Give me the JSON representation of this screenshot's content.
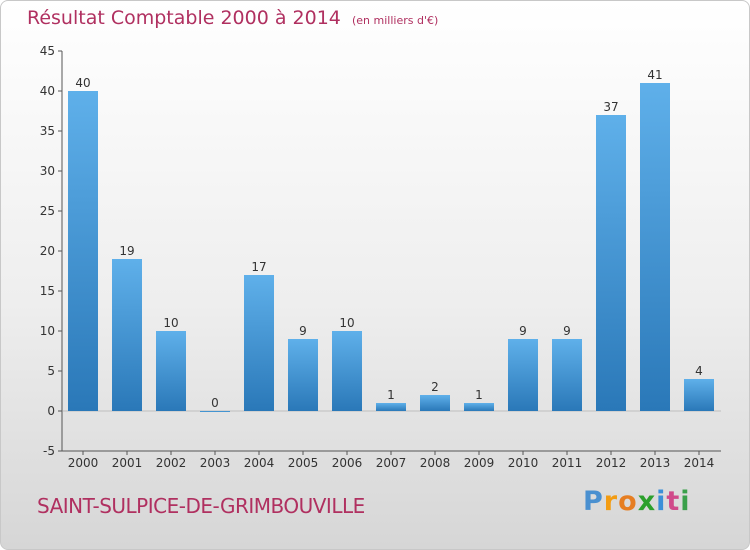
{
  "title": "Résultat Comptable 2000 à 2014",
  "subtitle": "(en milliers d'€)",
  "commune": "SAINT-SULPICE-DE-GRIMBOUVILLE",
  "logo": {
    "p": "P",
    "r": "r",
    "o": "o",
    "x": "x",
    "i1": "i",
    "t": "t",
    "i2": "i"
  },
  "colors": {
    "bar_light": "#5fb0ea",
    "bar_dark": "#2a78b8",
    "title": "#b03060"
  },
  "chart_data": {
    "type": "bar",
    "title": "Résultat Comptable 2000 à 2014",
    "ylabel": "(en milliers d'€)",
    "xlabel": "",
    "categories": [
      "2000",
      "2001",
      "2002",
      "2003",
      "2004",
      "2005",
      "2006",
      "2007",
      "2008",
      "2009",
      "2010",
      "2011",
      "2012",
      "2013",
      "2014"
    ],
    "values": [
      40,
      19,
      10,
      0,
      17,
      9,
      10,
      1,
      2,
      1,
      9,
      9,
      37,
      41,
      4
    ],
    "ylim": [
      -5,
      45
    ],
    "yticks": [
      -5,
      0,
      5,
      10,
      15,
      20,
      25,
      30,
      35,
      40,
      45
    ],
    "grid": false
  }
}
